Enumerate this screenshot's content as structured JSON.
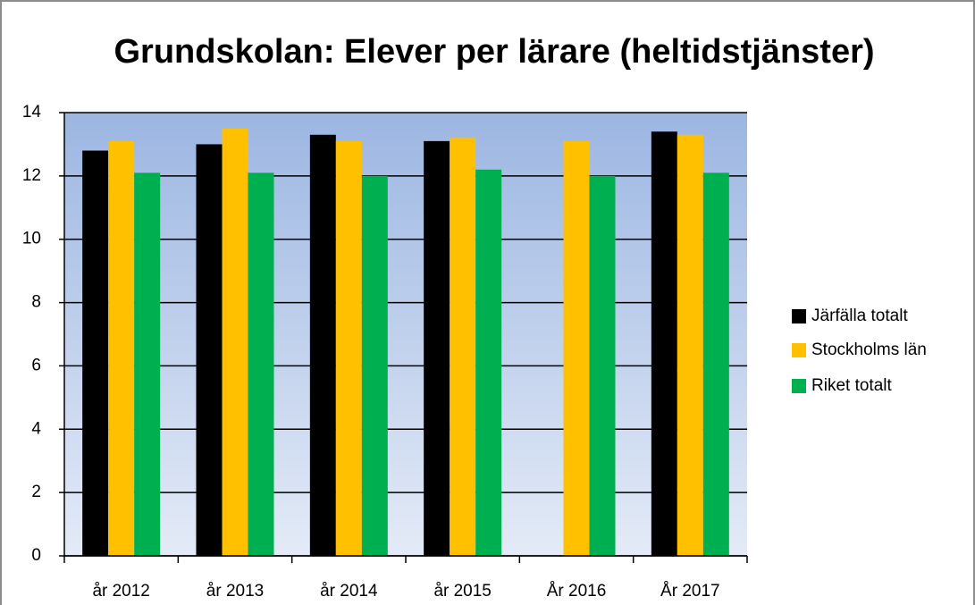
{
  "chart_data": {
    "type": "bar",
    "title": "Grundskolan: Elever per lärare (heltidstjänster)",
    "categories": [
      "år 2012",
      "år 2013",
      "år 2014",
      "år 2015",
      "År 2016",
      "År 2017"
    ],
    "series": [
      {
        "name": "Järfälla totalt",
        "color": "#000000",
        "values": [
          12.8,
          13.0,
          13.3,
          13.1,
          null,
          13.4
        ]
      },
      {
        "name": "Stockholms län",
        "color": "#ffc000",
        "values": [
          13.1,
          13.5,
          13.1,
          13.2,
          13.1,
          13.3
        ]
      },
      {
        "name": "Riket totalt",
        "color": "#00b050",
        "values": [
          12.1,
          12.1,
          12.0,
          12.2,
          12.0,
          12.1
        ]
      }
    ],
    "ylim": [
      0,
      14
    ],
    "yticks": [
      0,
      2,
      4,
      6,
      8,
      10,
      12,
      14
    ],
    "grid": true,
    "legend": "right"
  }
}
